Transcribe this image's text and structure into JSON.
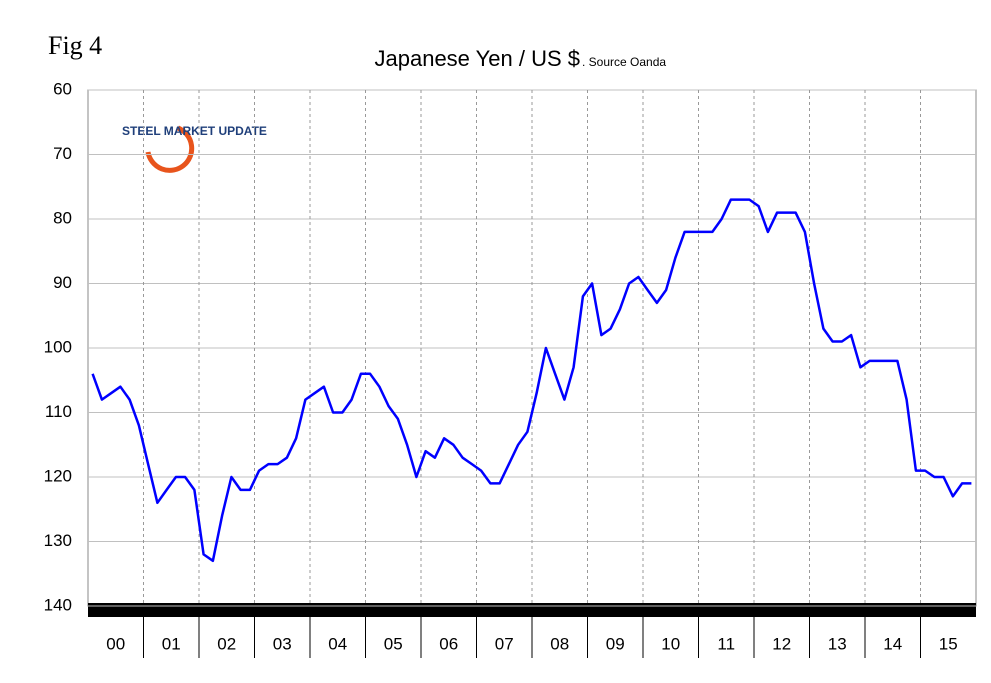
{
  "chart_data": {
    "type": "line",
    "figure_label": "Fig 4",
    "title": "Japanese Yen / US $",
    "subtitle": ". Source Oanda",
    "logo": "STEEL MARKET UPDATE",
    "categories": [
      "00",
      "01",
      "02",
      "03",
      "04",
      "05",
      "06",
      "07",
      "08",
      "09",
      "10",
      "11",
      "12",
      "13",
      "14",
      "15"
    ],
    "values": [
      [
        104,
        108,
        107,
        106,
        108,
        112
      ],
      [
        118,
        124,
        122,
        120,
        120,
        122
      ],
      [
        132,
        133,
        126,
        120,
        122,
        122
      ],
      [
        119,
        118,
        118,
        117,
        114,
        108
      ],
      [
        107,
        106,
        110,
        110,
        108,
        104
      ],
      [
        104,
        106,
        109,
        111,
        115,
        120
      ],
      [
        116,
        117,
        114,
        115,
        117,
        118
      ],
      [
        119,
        121,
        121,
        118,
        115,
        113
      ],
      [
        107,
        100,
        104,
        108,
        103,
        92
      ],
      [
        90,
        98,
        97,
        94,
        90,
        89
      ],
      [
        91,
        93,
        91,
        86,
        82,
        82
      ],
      [
        82,
        82,
        80,
        77,
        77,
        77
      ],
      [
        78,
        82,
        79,
        79,
        79,
        82
      ],
      [
        90,
        97,
        99,
        99,
        98,
        103
      ],
      [
        102,
        102,
        102,
        102,
        108,
        119
      ],
      [
        119,
        120,
        120,
        123,
        121,
        121
      ]
    ],
    "color": "#0000ff",
    "ylim": [
      60,
      140
    ],
    "y_inverted": true,
    "yticks": [
      60,
      70,
      80,
      90,
      100,
      110,
      120,
      130,
      140
    ],
    "grid": true
  }
}
